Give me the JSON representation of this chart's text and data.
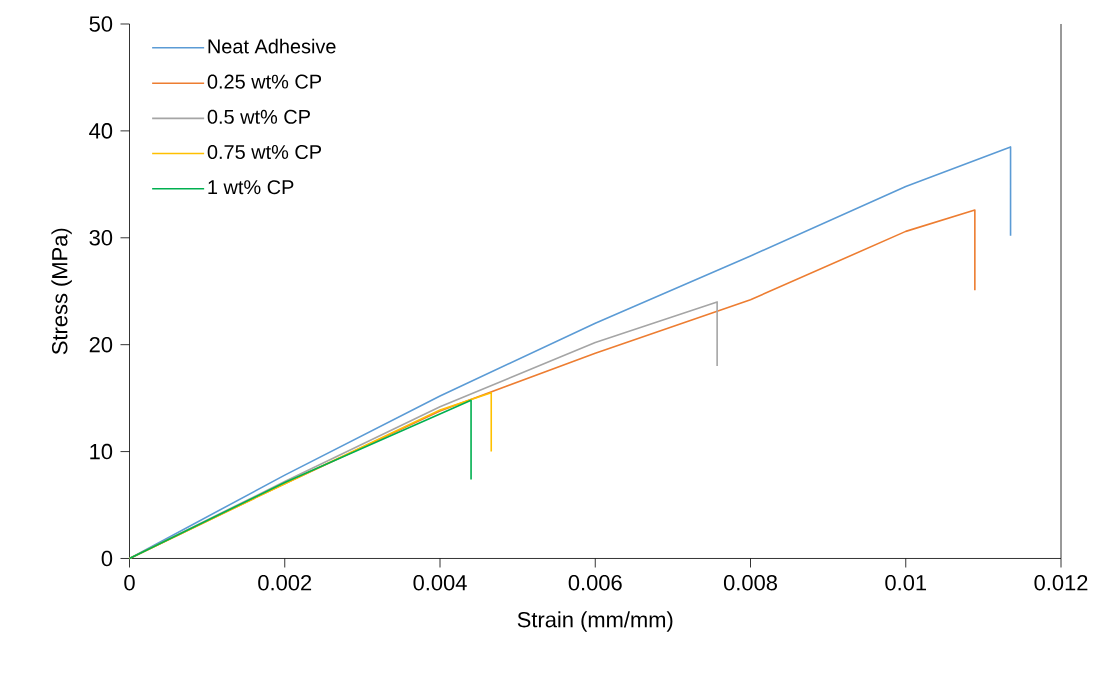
{
  "chart_data": {
    "type": "line",
    "xlabel": "Strain (mm/mm)",
    "ylabel": "Stress (MPa)",
    "xlim": [
      0,
      0.012
    ],
    "ylim": [
      0,
      50
    ],
    "xticks": [
      0,
      0.002,
      0.004,
      0.006,
      0.008,
      0.01,
      0.012
    ],
    "yticks": [
      0,
      10,
      20,
      30,
      40,
      50
    ],
    "grid": false,
    "legend": "top left",
    "marker": "none",
    "line_style": "solid",
    "series": [
      {
        "name": "Neat Adhesive",
        "color": "#5b9bd5",
        "x": [
          0,
          0.002,
          0.004,
          0.006,
          0.008,
          0.01,
          0.01135,
          0.01135
        ],
        "values": [
          0,
          7.8,
          15.2,
          22.0,
          28.3,
          34.8,
          38.5,
          30.2
        ]
      },
      {
        "name": "0.25 wt% CP",
        "color": "#ed7d31",
        "x": [
          0,
          0.002,
          0.004,
          0.006,
          0.008,
          0.01,
          0.01089,
          0.01089
        ],
        "values": [
          0,
          7.0,
          13.8,
          19.2,
          24.2,
          30.6,
          32.6,
          25.1
        ]
      },
      {
        "name": "0.5 wt% CP",
        "color": "#a5a5a5",
        "x": [
          0,
          0.002,
          0.004,
          0.006,
          0.00757,
          0.00757
        ],
        "values": [
          0,
          7.2,
          14.2,
          20.2,
          24.0,
          18.0
        ]
      },
      {
        "name": "0.75 wt% CP",
        "color": "#ffc000",
        "x": [
          0,
          0.002,
          0.004,
          0.00466,
          0.00466
        ],
        "values": [
          0,
          7.0,
          13.9,
          15.5,
          10.0
        ]
      },
      {
        "name": "1 wt% CP",
        "color": "#00b050",
        "x": [
          0,
          0.002,
          0.0044,
          0.0044
        ],
        "values": [
          0,
          7.1,
          14.8,
          7.4
        ]
      }
    ]
  }
}
